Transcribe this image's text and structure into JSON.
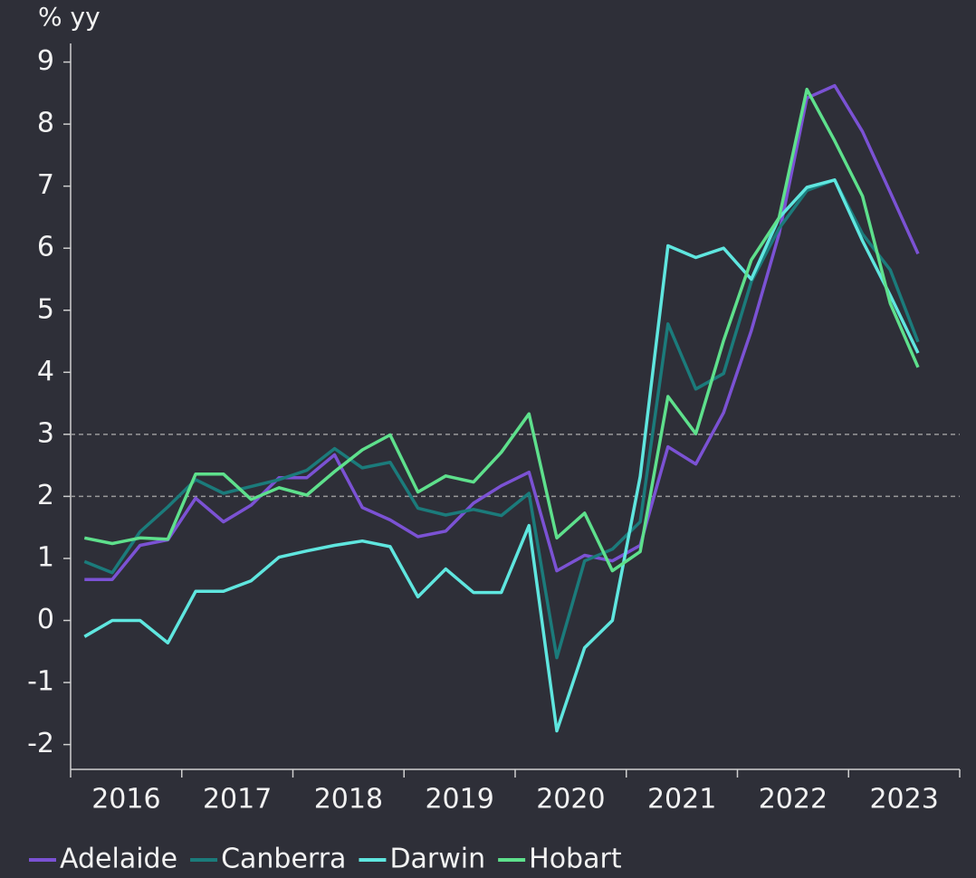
{
  "chart_data": {
    "type": "line",
    "y_axis_label": "% yy",
    "categories": [
      null,
      "2016",
      null,
      null,
      null,
      "2017",
      null,
      null,
      null,
      "2018",
      null,
      null,
      null,
      "2019",
      null,
      null,
      null,
      "2020",
      null,
      null,
      null,
      "2021",
      null,
      null,
      null,
      "2022",
      null,
      null,
      null,
      "2023",
      null
    ],
    "series": [
      {
        "name": "Adelaide",
        "color": "#7b52d4",
        "values": [
          0.66,
          0.66,
          1.21,
          1.3,
          1.97,
          1.59,
          1.86,
          2.3,
          2.3,
          2.67,
          1.82,
          1.62,
          1.35,
          1.44,
          1.89,
          2.17,
          2.39,
          0.8,
          1.05,
          0.96,
          1.21,
          2.8,
          2.52,
          3.35,
          4.67,
          6.23,
          8.42,
          8.62,
          7.88,
          6.9,
          5.91
        ]
      },
      {
        "name": "Canberra",
        "color": "#1b7b7b",
        "values": [
          0.95,
          0.77,
          1.43,
          1.83,
          2.27,
          2.05,
          2.16,
          2.27,
          2.42,
          2.77,
          2.46,
          2.55,
          1.81,
          1.7,
          1.79,
          1.69,
          2.05,
          -0.6,
          0.96,
          1.15,
          1.59,
          4.78,
          3.73,
          3.98,
          5.46,
          6.32,
          6.93,
          7.1,
          6.23,
          5.65,
          4.49
        ]
      },
      {
        "name": "Darwin",
        "color": "#5fe6df",
        "values": [
          -0.26,
          0,
          0,
          -0.36,
          0.47,
          0.47,
          0.64,
          1.02,
          1.12,
          1.21,
          1.28,
          1.19,
          0.38,
          0.83,
          0.45,
          0.45,
          1.53,
          -1.78,
          -0.44,
          0,
          2.32,
          6.04,
          5.85,
          6.0,
          5.5,
          6.49,
          6.98,
          7.1,
          6.12,
          5.24,
          4.31
        ]
      },
      {
        "name": "Hobart",
        "color": "#5ee08c",
        "values": [
          1.33,
          1.24,
          1.33,
          1.31,
          2.36,
          2.36,
          1.95,
          2.14,
          2.02,
          2.4,
          2.75,
          2.99,
          2.07,
          2.33,
          2.23,
          2.71,
          3.33,
          1.33,
          1.73,
          0.8,
          1.11,
          3.61,
          3.01,
          4.51,
          5.81,
          6.49,
          8.56,
          7.73,
          6.84,
          5.11,
          4.08
        ]
      }
    ],
    "ylim": [
      -2.4,
      9.3
    ],
    "yticks": [
      -2,
      -1,
      0,
      1,
      2,
      3,
      4,
      5,
      6,
      7,
      8,
      9
    ],
    "reference_lines": [
      2,
      3
    ],
    "legend": "bottom"
  }
}
